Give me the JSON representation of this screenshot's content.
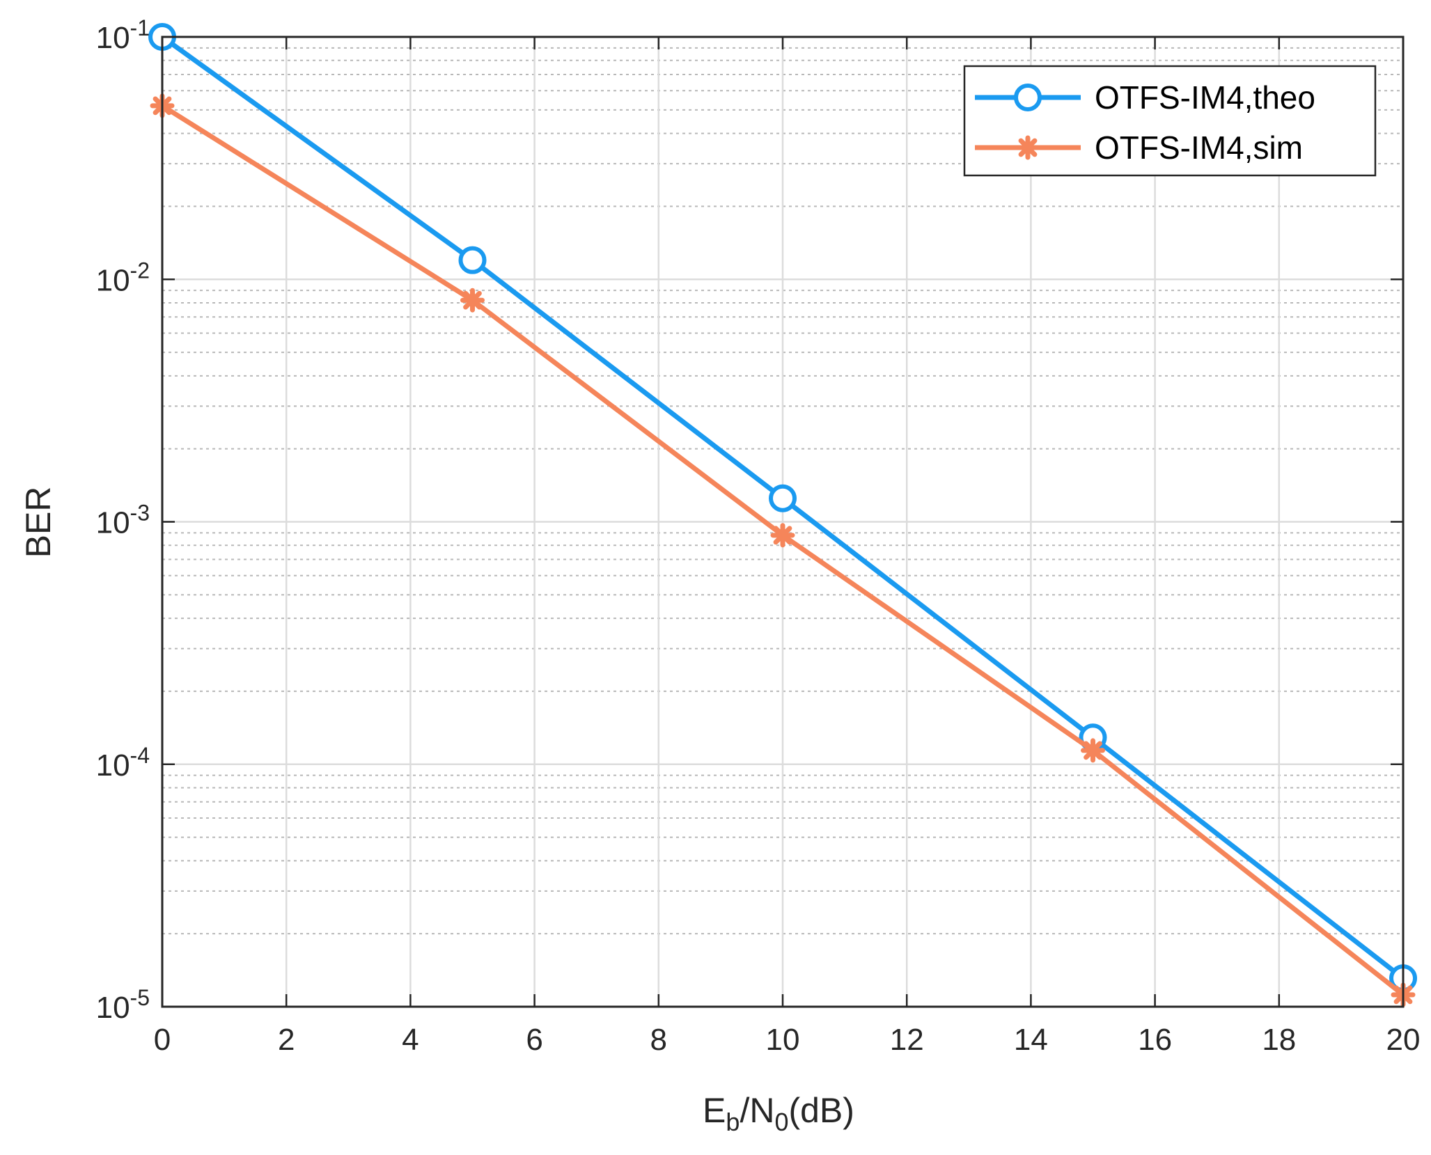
{
  "chart_data": {
    "type": "line",
    "xlabel": {
      "main": "E",
      "sub1": "b",
      "mid": "/N",
      "sub2": "0",
      "tail": "(dB)"
    },
    "ylabel": "BER",
    "yscale": "log",
    "xlim": [
      0,
      20
    ],
    "ylim": [
      1e-05,
      0.1
    ],
    "grid": true,
    "minor_grid": true,
    "legend_position": "top-right",
    "x_ticks": [
      {
        "v": 0,
        "label": "0"
      },
      {
        "v": 2,
        "label": "2"
      },
      {
        "v": 4,
        "label": "4"
      },
      {
        "v": 6,
        "label": "6"
      },
      {
        "v": 8,
        "label": "8"
      },
      {
        "v": 10,
        "label": "10"
      },
      {
        "v": 12,
        "label": "12"
      },
      {
        "v": 14,
        "label": "14"
      },
      {
        "v": 16,
        "label": "16"
      },
      {
        "v": 18,
        "label": "18"
      },
      {
        "v": 20,
        "label": "20"
      }
    ],
    "y_ticks": [
      {
        "v": 0.1,
        "base": "10",
        "exp": "-1"
      },
      {
        "v": 0.01,
        "base": "10",
        "exp": "-2"
      },
      {
        "v": 0.001,
        "base": "10",
        "exp": "-3"
      },
      {
        "v": 0.0001,
        "base": "10",
        "exp": "-4"
      },
      {
        "v": 1e-05,
        "base": "10",
        "exp": "-5"
      }
    ],
    "x": [
      0,
      5,
      10,
      15,
      20
    ],
    "series": [
      {
        "name": "OTFS-IM4,theo",
        "color": "#1a9af0",
        "marker": "circle",
        "values": [
          0.1,
          0.012,
          0.00125,
          0.000129,
          1.31e-05
        ]
      },
      {
        "name": "OTFS-IM4,sim",
        "color": "#f5855a",
        "marker": "star",
        "values": [
          0.052,
          0.0082,
          0.00088,
          0.000114,
          1.12e-05
        ]
      }
    ]
  }
}
